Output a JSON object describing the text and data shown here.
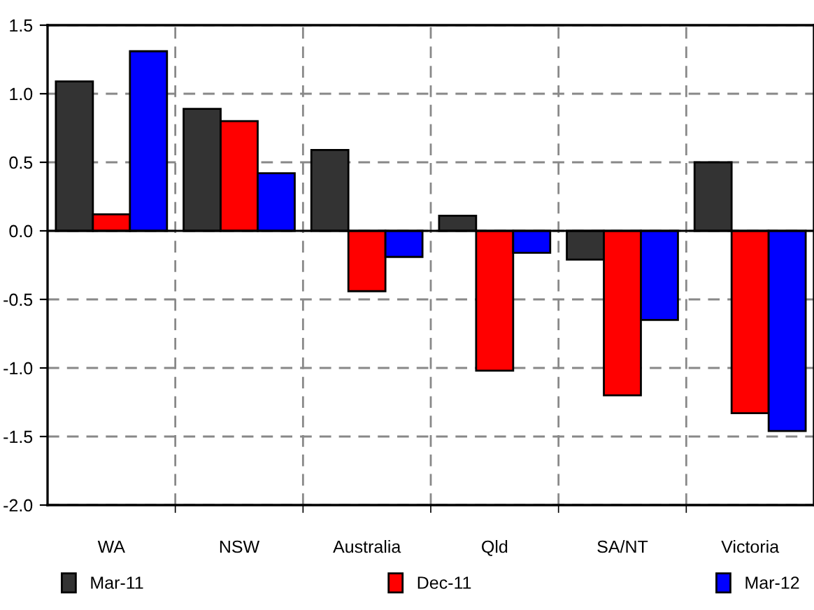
{
  "chart_data": {
    "type": "bar",
    "categories": [
      "WA",
      "NSW",
      "Australia",
      "Qld",
      "SA/NT",
      "Victoria"
    ],
    "series": [
      {
        "name": "Mar-11",
        "color": "#333333",
        "values": [
          1.09,
          0.89,
          0.59,
          0.11,
          -0.21,
          0.5
        ]
      },
      {
        "name": "Dec-11",
        "color": "#ff0000",
        "values": [
          0.12,
          0.8,
          -0.44,
          -1.02,
          -1.2,
          -1.33
        ]
      },
      {
        "name": "Mar-12",
        "color": "#0000ff",
        "values": [
          1.31,
          0.42,
          -0.19,
          -0.16,
          -0.65,
          -1.46
        ]
      }
    ],
    "ylim": [
      -2.0,
      1.5
    ],
    "yticks": [
      {
        "value": -2.0,
        "label": "-2.0"
      },
      {
        "value": -1.5,
        "label": "-1.5"
      },
      {
        "value": -1.0,
        "label": "-1.0"
      },
      {
        "value": -0.5,
        "label": "-0.5"
      },
      {
        "value": 0.0,
        "label": "0.0"
      },
      {
        "value": 0.5,
        "label": "0.5"
      },
      {
        "value": 1.0,
        "label": "1.0"
      },
      {
        "value": 1.5,
        "label": "1.5"
      }
    ],
    "grid": true,
    "legend": "bottom"
  }
}
